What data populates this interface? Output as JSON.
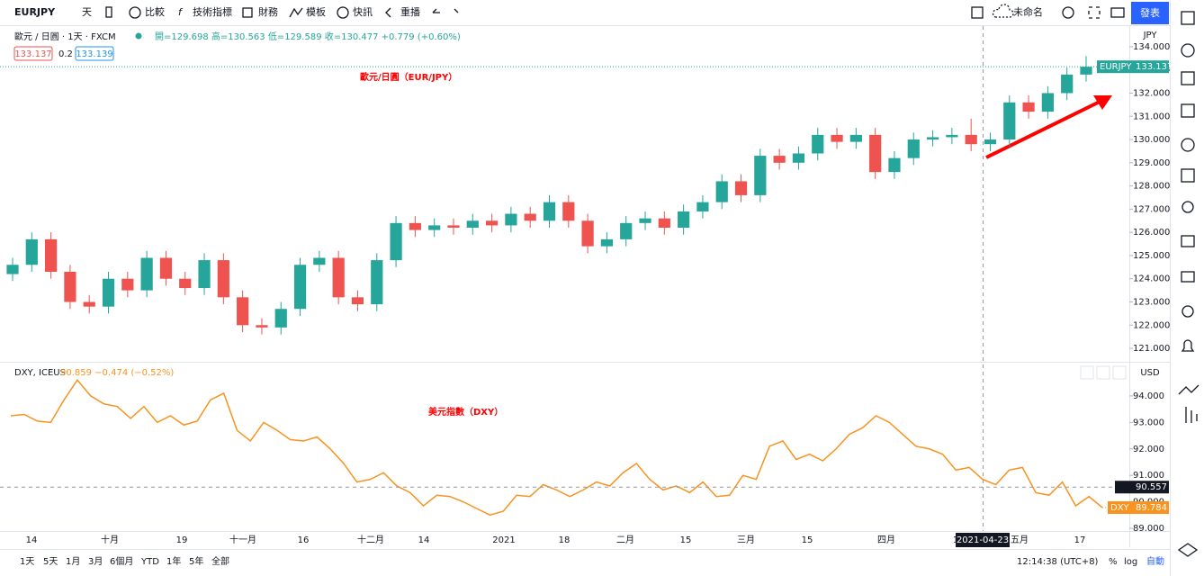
{
  "toolbar": {
    "symbol": "EURJPY",
    "interval": "天",
    "items": [
      "比較",
      "技術指標",
      "財務",
      "模板",
      "快訊",
      "重播"
    ],
    "layout_name": "未命名",
    "publish": "發表"
  },
  "legend": {
    "title": "歐元 / 日圓 · 1天 · FXCM",
    "ohlc": "開=129.698 高=130.563 低=129.589 收=130.477 +0.779 (+0.60%)",
    "bid": "133.137",
    "spread": "0.2",
    "ask": "133.139"
  },
  "lower_legend": {
    "title": "DXY, ICEUS",
    "values": "90.859 −0.474 (−0.52%)"
  },
  "time_axis": [
    "14",
    "十月",
    "19",
    "十一月",
    "16",
    "十二月",
    "14",
    "2021",
    "18",
    "二月",
    "15",
    "三月",
    "15",
    "四月",
    "1",
    "五月",
    "17"
  ],
  "crosshair": {
    "date": "2021-04-23",
    "value": 90.557
  },
  "bottom": {
    "ranges": [
      "1天",
      "5天",
      "1月",
      "3月",
      "6個月",
      "YTD",
      "1年",
      "5年",
      "全部"
    ],
    "clock": "12:14:38 (UTC+8)",
    "percent": "%",
    "log": "log",
    "auto": "自動"
  },
  "chart_data": [
    {
      "type": "candlestick",
      "name": "EURJPY",
      "annotation": "歐元/日圓（EUR/JPY）",
      "currency": "JPY",
      "up_color": "#26a69a",
      "down_color": "#ef5350",
      "open": [
        124.2,
        124.6,
        125.7,
        124.3,
        123.0,
        122.8,
        124.0,
        123.5,
        124.9,
        124.0,
        123.6,
        124.8,
        123.2,
        122.0,
        121.9,
        122.7,
        124.6,
        124.9,
        123.2,
        122.9,
        124.8,
        126.4,
        126.1,
        126.3,
        126.2,
        126.5,
        126.3,
        126.8,
        126.5,
        127.3,
        126.5,
        125.4,
        125.7,
        126.4,
        126.6,
        126.2,
        126.9,
        127.3,
        128.2,
        127.6,
        129.3,
        129.0,
        129.4,
        130.2,
        129.9,
        130.2,
        128.6,
        129.2,
        130.0,
        130.1,
        130.2,
        129.8,
        130.0,
        131.6,
        131.2,
        132.0,
        132.8
      ],
      "high": [
        124.9,
        126.0,
        126.0,
        124.6,
        123.3,
        124.3,
        124.3,
        125.2,
        125.2,
        124.3,
        125.1,
        125.1,
        123.5,
        122.3,
        123.0,
        124.9,
        125.2,
        125.2,
        123.5,
        125.1,
        126.7,
        126.7,
        126.6,
        126.6,
        126.8,
        126.8,
        127.1,
        127.1,
        127.6,
        127.6,
        126.8,
        126.0,
        126.7,
        126.9,
        126.9,
        127.2,
        127.6,
        128.5,
        128.5,
        129.6,
        129.6,
        129.7,
        130.5,
        130.5,
        130.5,
        130.5,
        129.5,
        130.3,
        130.4,
        130.5,
        130.9,
        130.3,
        131.9,
        131.9,
        132.3,
        133.1,
        133.6
      ],
      "low": [
        123.9,
        124.3,
        124.0,
        122.7,
        122.5,
        122.5,
        123.2,
        123.2,
        123.7,
        123.3,
        123.3,
        122.9,
        121.7,
        121.6,
        121.6,
        122.4,
        124.3,
        122.9,
        122.6,
        122.6,
        124.5,
        125.8,
        125.8,
        125.9,
        125.9,
        126.0,
        126.0,
        126.2,
        126.2,
        126.2,
        125.1,
        125.1,
        125.4,
        126.1,
        125.9,
        125.9,
        126.6,
        127.0,
        127.3,
        127.3,
        128.7,
        128.7,
        129.1,
        129.6,
        129.6,
        128.3,
        128.3,
        128.9,
        129.7,
        129.8,
        129.5,
        129.5,
        129.7,
        130.9,
        130.9,
        131.7,
        132.5
      ],
      "close": [
        124.6,
        125.7,
        124.3,
        123.0,
        122.8,
        124.0,
        123.5,
        124.9,
        124.0,
        123.6,
        124.8,
        123.2,
        122.0,
        121.9,
        122.7,
        124.6,
        124.9,
        123.2,
        122.9,
        124.8,
        126.4,
        126.1,
        126.3,
        126.2,
        126.5,
        126.3,
        126.8,
        126.5,
        127.3,
        126.5,
        125.4,
        125.7,
        126.4,
        126.6,
        126.2,
        126.9,
        127.3,
        128.2,
        127.6,
        129.3,
        129.0,
        129.4,
        130.2,
        129.9,
        130.2,
        128.6,
        129.2,
        130.0,
        130.1,
        130.2,
        129.8,
        130.0,
        131.6,
        131.2,
        132.0,
        132.8,
        133.137
      ],
      "last": 133.137,
      "ylim": [
        120.42,
        134.85
      ],
      "yticks": [
        {
          "value": 121,
          "label": "121.000"
        },
        {
          "value": 122,
          "label": "122.000"
        },
        {
          "value": 123,
          "label": "123.000"
        },
        {
          "value": 124,
          "label": "124.000"
        },
        {
          "value": 125,
          "label": "125.000"
        },
        {
          "value": 126,
          "label": "126.000"
        },
        {
          "value": 127,
          "label": "127.000"
        },
        {
          "value": 128,
          "label": "128.000"
        },
        {
          "value": 129,
          "label": "129.000"
        },
        {
          "value": 130,
          "label": "130.000"
        },
        {
          "value": 131,
          "label": "131.000"
        },
        {
          "value": 132,
          "label": "132.000"
        },
        {
          "value": 133,
          "label": "133.000"
        },
        {
          "value": 134,
          "label": "134.000"
        }
      ]
    },
    {
      "type": "line",
      "name": "DXY",
      "annotation": "美元指數（DXY）",
      "currency": "USD",
      "color": "#f7931e",
      "values": [
        93.25,
        93.3,
        93.05,
        93.0,
        93.85,
        94.6,
        94.0,
        93.7,
        93.6,
        93.15,
        93.6,
        93.0,
        93.25,
        92.9,
        93.05,
        93.85,
        94.1,
        92.7,
        92.3,
        93.0,
        92.7,
        92.35,
        92.3,
        92.45,
        92.0,
        91.45,
        90.75,
        90.85,
        91.1,
        90.6,
        90.35,
        89.85,
        90.25,
        90.2,
        90.0,
        89.75,
        89.5,
        89.65,
        90.25,
        90.2,
        90.65,
        90.45,
        90.2,
        90.45,
        90.75,
        90.6,
        91.1,
        91.45,
        90.85,
        90.45,
        90.6,
        90.35,
        90.75,
        90.2,
        90.25,
        91.0,
        90.85,
        92.1,
        92.3,
        91.6,
        91.8,
        91.55,
        92.0,
        92.55,
        92.8,
        93.25,
        93.0,
        92.55,
        92.1,
        92.0,
        91.8,
        91.2,
        91.3,
        90.85,
        90.65,
        91.2,
        91.3,
        90.35,
        90.25,
        90.75,
        89.85,
        90.2,
        89.784
      ],
      "last": 89.784,
      "ylim": [
        88.9,
        95.22
      ],
      "yticks": [
        {
          "value": 89,
          "label": "89.000"
        },
        {
          "value": 90,
          "label": "90.000"
        },
        {
          "value": 91,
          "label": "91.000"
        },
        {
          "value": 92,
          "label": "92.000"
        },
        {
          "value": 93,
          "label": "93.000"
        },
        {
          "value": 94,
          "label": "94.000"
        }
      ]
    }
  ]
}
